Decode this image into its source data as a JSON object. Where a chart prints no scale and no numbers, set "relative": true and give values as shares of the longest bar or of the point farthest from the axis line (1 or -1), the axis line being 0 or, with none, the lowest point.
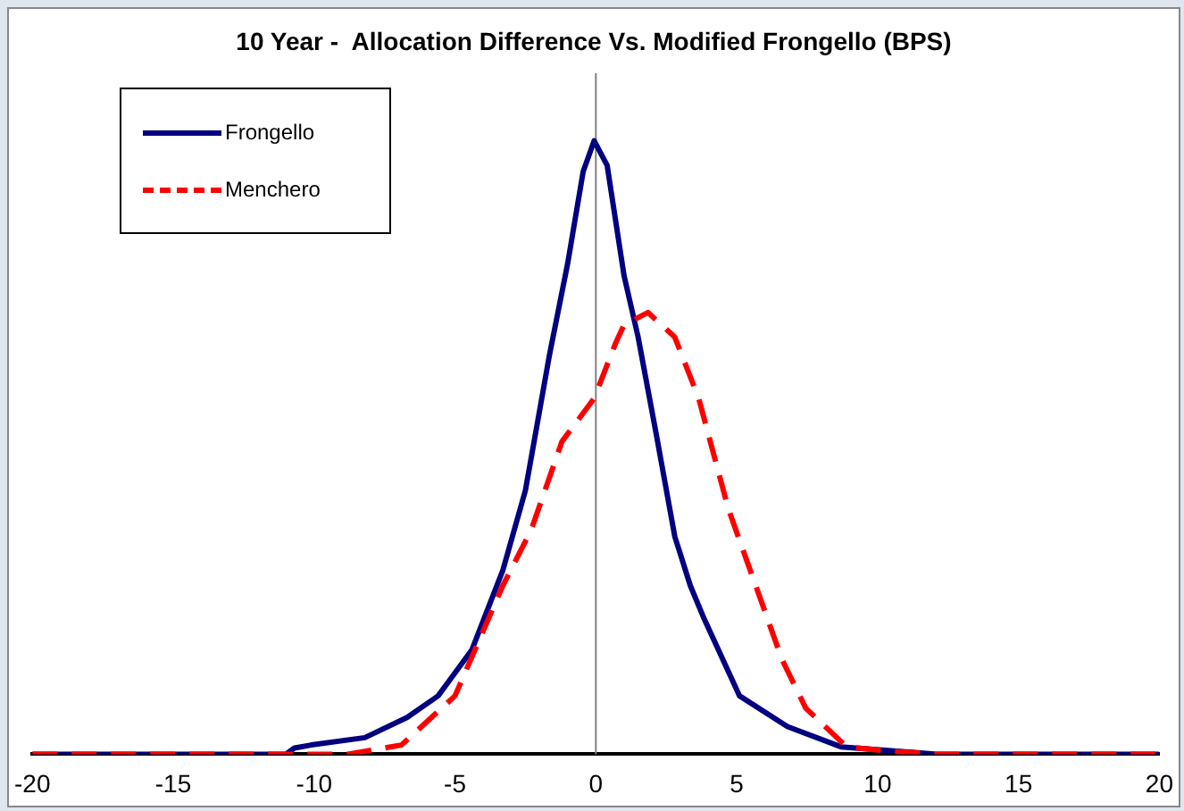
{
  "chart_data": {
    "type": "line",
    "title": "10 Year -  Allocation Difference Vs. Modified Frongello (BPS)",
    "relative": true,
    "xlim": [
      -20,
      20
    ],
    "xticks": [
      -20,
      -15,
      -10,
      -5,
      0,
      5,
      10,
      15,
      20
    ],
    "tick_labels": "x",
    "grid": false,
    "legend": "top left",
    "marker": "none",
    "ref_lines": [
      {
        "axis": "x",
        "value": 0,
        "color": "#808080"
      }
    ],
    "series": [
      {
        "name": "Frongello",
        "color": "#000080",
        "line_style": "solid",
        "x": [
          -20,
          -11,
          -10.7,
          -10.1,
          -8.2,
          -6.7,
          -5.6,
          -4.4,
          -3.3,
          -2.5,
          -1.65,
          -1.0,
          -0.45,
          -0.06,
          0.4,
          1.0,
          1.5,
          2.15,
          2.8,
          3.35,
          3.85,
          5.1,
          6.8,
          8.7,
          12.1,
          20
        ],
        "values": [
          0,
          0,
          0.01,
          0.015,
          0.027,
          0.06,
          0.095,
          0.17,
          0.3,
          0.43,
          0.65,
          0.8,
          0.95,
          1,
          0.96,
          0.78,
          0.68,
          0.52,
          0.355,
          0.275,
          0.22,
          0.095,
          0.045,
          0.012,
          0,
          0
        ]
      },
      {
        "name": "Menchero",
        "color": "#ff0000",
        "line_style": "dashed",
        "x": [
          -20,
          -11,
          -8.8,
          -6.9,
          -5.0,
          -3.3,
          -2.3,
          -1.2,
          -0.06,
          0.7,
          1.0,
          1.85,
          2.8,
          3.65,
          4.7,
          5.75,
          6.6,
          7.45,
          8.9,
          10.4,
          12.1,
          20
        ],
        "values": [
          0,
          0,
          0,
          0.015,
          0.095,
          0.275,
          0.365,
          0.51,
          0.58,
          0.67,
          0.7,
          0.72,
          0.68,
          0.58,
          0.4,
          0.265,
          0.155,
          0.075,
          0.012,
          0.005,
          0,
          0
        ]
      }
    ]
  }
}
